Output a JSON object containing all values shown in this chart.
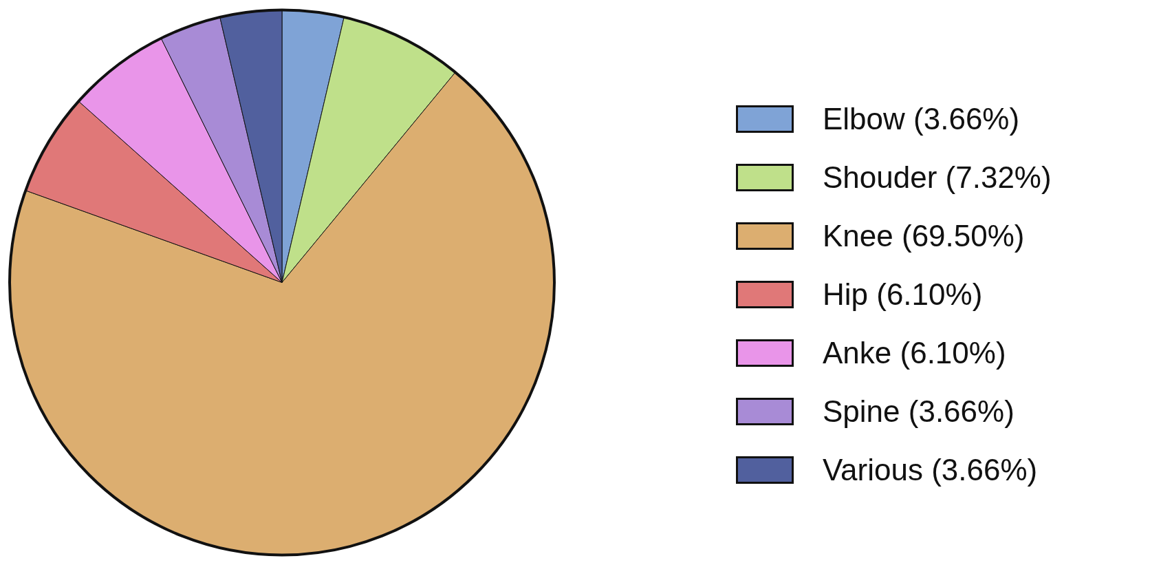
{
  "chart_data": {
    "type": "pie",
    "categories": [
      "Elbow (3.66%)",
      "Shouder (7.32%)",
      "Knee (69.50%)",
      "Hip (6.10%)",
      "Anke (6.10%)",
      "Spine (3.66%)",
      "Various (3.66%)"
    ],
    "values": [
      3.66,
      7.32,
      69.5,
      6.1,
      6.1,
      3.66,
      3.66
    ],
    "colors": [
      "#7fa3d6",
      "#bfe08a",
      "#dcae70",
      "#e07878",
      "#e995e9",
      "#a88bd6",
      "#51609e"
    ],
    "legend": "right"
  }
}
